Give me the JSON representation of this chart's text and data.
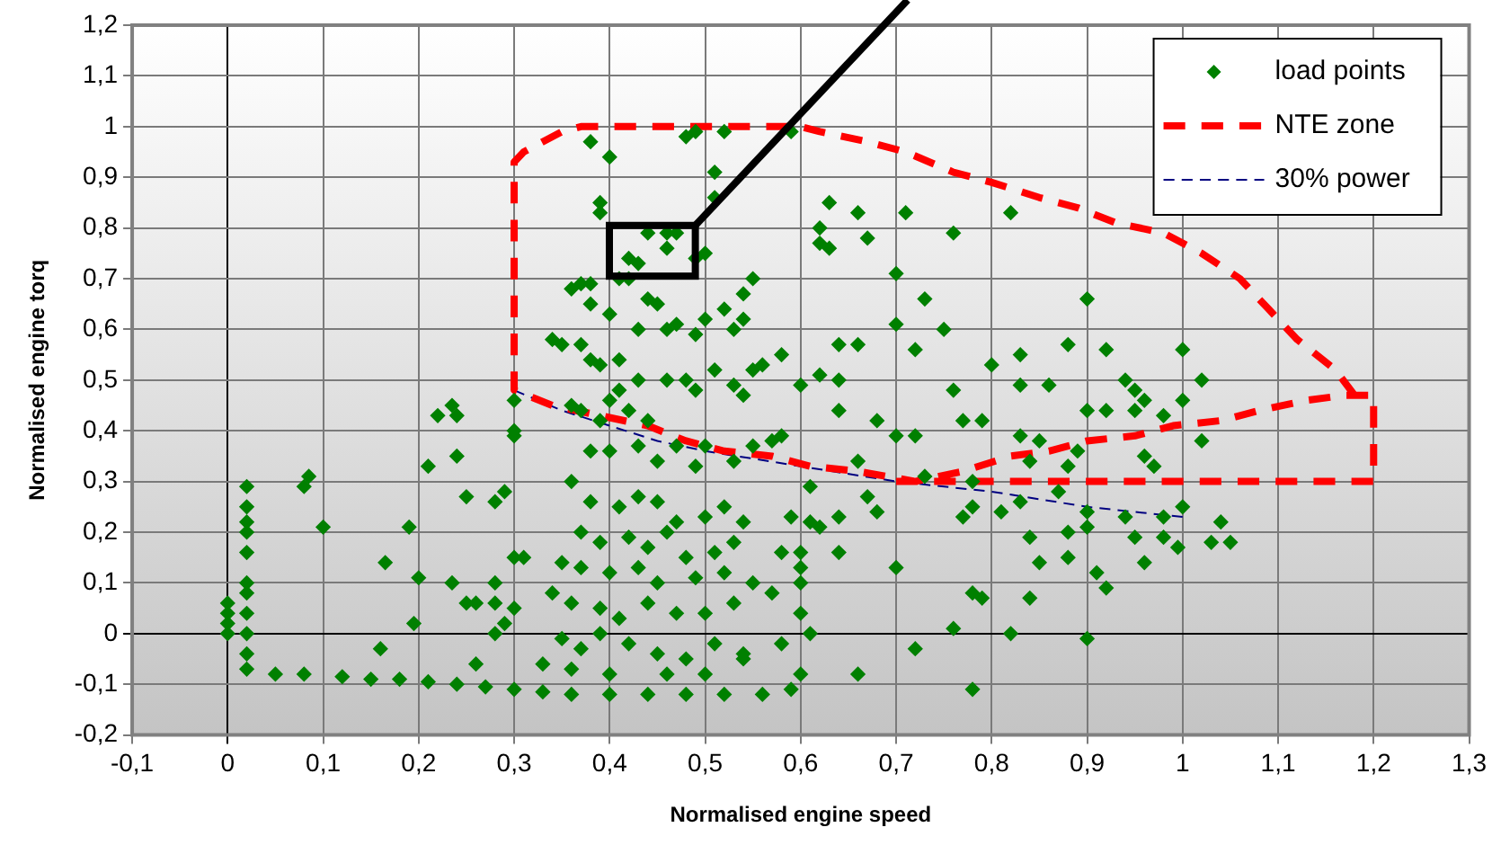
{
  "chart_data": {
    "type": "scatter",
    "xlabel": "Normalised engine speed",
    "ylabel": "Normalised engine torq",
    "xlim": [
      -0.1,
      1.3
    ],
    "ylim": [
      -0.2,
      1.2
    ],
    "xticks": [
      {
        "value": -0.1,
        "label": "-0,1"
      },
      0,
      {
        "value": 0.1,
        "label": "0,1"
      },
      {
        "value": 0.2,
        "label": "0,2"
      },
      {
        "value": 0.3,
        "label": "0,3"
      },
      {
        "value": 0.4,
        "label": "0,4"
      },
      {
        "value": 0.5,
        "label": "0,5"
      },
      {
        "value": 0.6,
        "label": "0,6"
      },
      {
        "value": 0.7,
        "label": "0,7"
      },
      {
        "value": 0.8,
        "label": "0,8"
      },
      {
        "value": 0.9,
        "label": "0,9"
      },
      1,
      {
        "value": 1.1,
        "label": "1,1"
      },
      {
        "value": 1.2,
        "label": "1,2"
      },
      {
        "value": 1.3,
        "label": "1,3"
      }
    ],
    "yticks": [
      {
        "value": -0.2,
        "label": "-0,2"
      },
      {
        "value": -0.1,
        "label": "-0,1"
      },
      0,
      {
        "value": 0.1,
        "label": "0,1"
      },
      {
        "value": 0.2,
        "label": "0,2"
      },
      {
        "value": 0.3,
        "label": "0,3"
      },
      {
        "value": 0.4,
        "label": "0,4"
      },
      {
        "value": 0.5,
        "label": "0,5"
      },
      {
        "value": 0.6,
        "label": "0,6"
      },
      {
        "value": 0.7,
        "label": "0,7"
      },
      {
        "value": 0.8,
        "label": "0,8"
      },
      {
        "value": 0.9,
        "label": "0,9"
      },
      1,
      {
        "value": 1.1,
        "label": "1,1"
      },
      {
        "value": 1.2,
        "label": "1,2"
      }
    ],
    "grid": true,
    "legend": "top right",
    "series": [
      {
        "name": "load points",
        "type": "scatter",
        "color": "#008000",
        "marker": "diamond",
        "x": [
          0,
          0,
          0,
          0,
          0.02,
          0.02,
          0.02,
          0.02,
          0.02,
          0.02,
          0.02,
          0.02,
          0.02,
          0.02,
          0.02,
          0.05,
          0.08,
          0.12,
          0.15,
          0.18,
          0.21,
          0.24,
          0.27,
          0.3,
          0.33,
          0.36,
          0.4,
          0.44,
          0.48,
          0.52,
          0.56,
          0.59,
          0.08,
          0.085,
          0.1,
          0.165,
          0.19,
          0.195,
          0.2,
          0.21,
          0.22,
          0.235,
          0.24,
          0.24,
          0.235,
          0.25,
          0.26,
          0.25,
          0.28,
          0.29,
          0.28,
          0.28,
          0.29,
          0.28,
          0.3,
          0.3,
          0.3,
          0.3,
          0.26,
          0.16,
          0.31,
          0.3,
          0.38,
          0.4,
          0.39,
          0.39,
          0.44,
          0.46,
          0.47,
          0.46,
          0.42,
          0.43,
          0.49,
          0.5,
          0.48,
          0.49,
          0.52,
          0.51,
          0.51,
          0.38,
          0.37,
          0.36,
          0.38,
          0.41,
          0.42,
          0.44,
          0.45,
          0.4,
          0.43,
          0.46,
          0.47,
          0.5,
          0.49,
          0.52,
          0.53,
          0.54,
          0.55,
          0.54,
          0.34,
          0.35,
          0.37,
          0.38,
          0.39,
          0.41,
          0.41,
          0.43,
          0.46,
          0.48,
          0.49,
          0.51,
          0.53,
          0.55,
          0.56,
          0.58,
          0.36,
          0.37,
          0.39,
          0.4,
          0.42,
          0.44,
          0.38,
          0.4,
          0.43,
          0.45,
          0.47,
          0.49,
          0.5,
          0.36,
          0.38,
          0.41,
          0.43,
          0.45,
          0.47,
          0.5,
          0.52,
          0.54,
          0.37,
          0.39,
          0.42,
          0.44,
          0.46,
          0.48,
          0.51,
          0.53,
          0.35,
          0.37,
          0.4,
          0.43,
          0.45,
          0.49,
          0.52,
          0.55,
          0.34,
          0.36,
          0.39,
          0.41,
          0.44,
          0.47,
          0.5,
          0.53,
          0.35,
          0.37,
          0.39,
          0.42,
          0.45,
          0.48,
          0.51,
          0.54,
          0.33,
          0.36,
          0.4,
          0.46,
          0.5,
          0.59,
          0.63,
          0.62,
          0.62,
          0.63,
          0.66,
          0.67,
          0.71,
          0.76,
          0.82,
          0.9,
          0.7,
          0.73,
          0.7,
          0.75,
          0.72,
          0.64,
          0.66,
          0.62,
          0.64,
          0.83,
          0.88,
          0.92,
          0.94,
          0.95,
          1.0,
          1.02,
          0.8,
          0.83,
          0.86,
          0.76,
          0.6,
          0.54,
          0.57,
          0.58,
          0.64,
          0.68,
          0.7,
          0.72,
          0.77,
          0.79,
          0.83,
          0.85,
          0.89,
          0.9,
          0.92,
          0.95,
          0.96,
          0.98,
          1.0,
          1.02,
          0.96,
          0.97,
          0.84,
          0.88,
          0.78,
          0.78,
          0.67,
          0.68,
          0.66,
          0.73,
          0.77,
          0.81,
          0.83,
          0.84,
          0.85,
          0.87,
          0.88,
          0.9,
          0.88,
          0.9,
          0.91,
          0.9,
          0.92,
          0.94,
          0.95,
          0.96,
          0.98,
          0.98,
          1.0,
          0.995,
          1.04,
          1.05,
          1.03,
          0.78,
          0.79,
          0.84,
          0.7,
          0.76,
          0.78,
          0.82,
          0.72,
          0.66,
          0.58,
          0.6,
          0.6,
          0.6,
          0.57,
          0.6,
          0.58,
          0.61,
          0.6,
          0.54,
          0.61,
          0.64,
          0.61,
          0.62,
          0.59,
          0.64,
          0.53,
          0.55
        ],
        "values": [
          0,
          0.02,
          0.04,
          0.06,
          0.29,
          0.25,
          0.22,
          0.2,
          0.16,
          0.1,
          0.08,
          0.04,
          0,
          -0.04,
          -0.07,
          -0.08,
          -0.08,
          -0.085,
          -0.09,
          -0.09,
          -0.095,
          -0.1,
          -0.105,
          -0.11,
          -0.115,
          -0.12,
          -0.12,
          -0.12,
          -0.12,
          -0.12,
          -0.12,
          -0.11,
          0.29,
          0.31,
          0.21,
          0.14,
          0.21,
          0.02,
          0.11,
          0.33,
          0.43,
          0.45,
          0.43,
          0.35,
          0.1,
          0.06,
          0.06,
          0.27,
          0.26,
          0.28,
          0.1,
          0.06,
          0.02,
          0,
          0.15,
          0.4,
          0.39,
          0.46,
          -0.06,
          -0.03,
          0.15,
          0.05,
          0.97,
          0.94,
          0.85,
          0.83,
          0.79,
          0.79,
          0.79,
          0.76,
          0.74,
          0.73,
          0.74,
          0.75,
          0.98,
          0.99,
          0.99,
          0.91,
          0.86,
          0.69,
          0.69,
          0.68,
          0.65,
          0.7,
          0.7,
          0.66,
          0.65,
          0.63,
          0.6,
          0.6,
          0.61,
          0.62,
          0.59,
          0.64,
          0.6,
          0.62,
          0.7,
          0.67,
          0.58,
          0.57,
          0.57,
          0.54,
          0.53,
          0.54,
          0.48,
          0.5,
          0.5,
          0.5,
          0.48,
          0.52,
          0.49,
          0.52,
          0.53,
          0.55,
          0.45,
          0.44,
          0.42,
          0.46,
          0.44,
          0.42,
          0.36,
          0.36,
          0.37,
          0.34,
          0.37,
          0.33,
          0.37,
          0.3,
          0.26,
          0.25,
          0.27,
          0.26,
          0.22,
          0.23,
          0.25,
          0.22,
          0.2,
          0.18,
          0.19,
          0.17,
          0.2,
          0.15,
          0.16,
          0.18,
          0.14,
          0.13,
          0.12,
          0.13,
          0.1,
          0.11,
          0.12,
          0.1,
          0.08,
          0.06,
          0.05,
          0.03,
          0.06,
          0.04,
          0.04,
          0.06,
          -0.01,
          -0.03,
          0,
          -0.02,
          -0.04,
          -0.05,
          -0.02,
          -0.04,
          -0.06,
          -0.07,
          -0.08,
          -0.08,
          -0.08,
          0.99,
          0.85,
          0.8,
          0.77,
          0.76,
          0.83,
          0.78,
          0.83,
          0.79,
          0.83,
          0.66,
          0.71,
          0.66,
          0.61,
          0.6,
          0.56,
          0.57,
          0.57,
          0.51,
          0.5,
          0.55,
          0.57,
          0.56,
          0.5,
          0.48,
          0.56,
          0.5,
          0.53,
          0.49,
          0.49,
          0.48,
          0.49,
          0.47,
          0.38,
          0.39,
          0.44,
          0.42,
          0.39,
          0.39,
          0.42,
          0.42,
          0.39,
          0.38,
          0.36,
          0.44,
          0.44,
          0.44,
          0.46,
          0.43,
          0.46,
          0.38,
          0.35,
          0.33,
          0.34,
          0.33,
          0.3,
          0.25,
          0.27,
          0.24,
          0.34,
          0.31,
          0.23,
          0.24,
          0.26,
          0.19,
          0.14,
          0.28,
          0.2,
          0.21,
          0.15,
          0.24,
          0.12,
          -0.01,
          0.09,
          0.23,
          0.19,
          0.14,
          0.19,
          0.23,
          0.25,
          0.17,
          0.22,
          0.18,
          0.18,
          0.08,
          0.07,
          0.07,
          0.13,
          0.01,
          -0.11,
          0,
          -0.03,
          -0.08,
          0.16,
          0.16,
          0.13,
          0.1,
          0.08,
          0.04,
          -0.02,
          0,
          -0.08,
          -0.05,
          0.29,
          0.23,
          0.22,
          0.21,
          0.23,
          0.16,
          0.34,
          0.37
        ]
      },
      {
        "name": "NTE zone",
        "type": "line",
        "color": "#ff0000",
        "line_style": "dashed",
        "marker": "none",
        "x": [
          0.7,
          1.2,
          1.2,
          1.17,
          1.13,
          1.08,
          1.04,
          0.99,
          0.95,
          0.9,
          0.86,
          0.82,
          0.77,
          0.72,
          0.66,
          0.61,
          0.57,
          0.52,
          0.48,
          0.44,
          0.39,
          0.34,
          0.3,
          0.3,
          0.31,
          0.35,
          0.37,
          0.6,
          0.62,
          0.67,
          0.71,
          0.76,
          0.8,
          0.85,
          0.89,
          0.93,
          0.98,
          1.02,
          1.06,
          1.09,
          1.12,
          1.16,
          1.18
        ],
        "values": [
          0.3,
          0.3,
          0.47,
          0.47,
          0.46,
          0.44,
          0.42,
          0.41,
          0.39,
          0.38,
          0.36,
          0.35,
          0.32,
          0.3,
          0.32,
          0.33,
          0.35,
          0.36,
          0.38,
          0.41,
          0.43,
          0.45,
          0.48,
          0.93,
          0.95,
          0.99,
          1.0,
          1.0,
          0.99,
          0.97,
          0.95,
          0.91,
          0.89,
          0.86,
          0.84,
          0.81,
          0.79,
          0.75,
          0.7,
          0.64,
          0.58,
          0.52,
          0.47
        ]
      },
      {
        "name": "30% power",
        "type": "line",
        "color": "#000080",
        "line_style": "dashed",
        "marker": "none",
        "x": [
          0.3,
          0.35,
          0.4,
          0.45,
          0.5,
          0.6,
          0.7,
          0.8,
          0.9,
          1.0
        ],
        "values": [
          0.48,
          0.44,
          0.41,
          0.38,
          0.36,
          0.33,
          0.3,
          0.28,
          0.25,
          0.23
        ]
      }
    ]
  }
}
